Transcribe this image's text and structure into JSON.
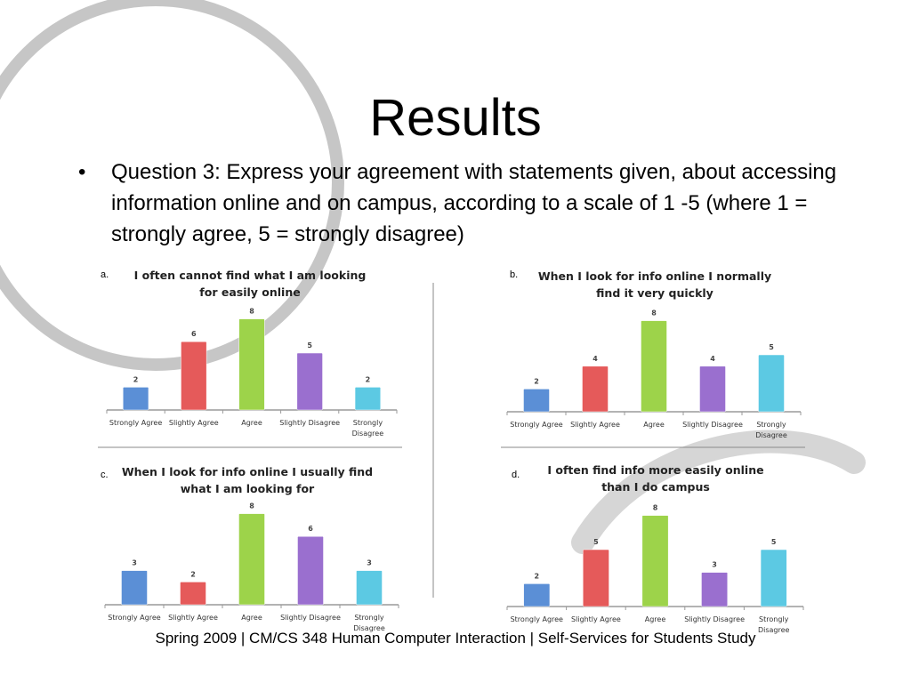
{
  "slide": {
    "title": "Results",
    "bullet_text": "Question 3: Express your agreement with statements given, about accessing information online and on campus, according to a scale of 1 -5 (where 1 = strongly agree, 5 = strongly disagree)",
    "footer": "Spring 2009 | CM/CS 348 Human Computer Interaction | Self-Services for Students Study"
  },
  "colors": {
    "Strongly Agree": "#5b8fd6",
    "Slightly Agree": "#e55a5a",
    "Agree": "#9dd34a",
    "Slightly Disagree": "#9a6fcf",
    "Strongly Disagree": "#5cc9e3"
  },
  "chart_data": [
    {
      "type": "bar",
      "letter": "a.",
      "title": [
        "I often cannot find what I am looking",
        "for easily online"
      ],
      "categories": [
        "Strongly Agree",
        "Slightly Agree",
        "Agree",
        "Slightly Disagree",
        "Strongly Disagree"
      ],
      "category_labels": [
        [
          "Strongly Agree"
        ],
        [
          "Slightly Agree"
        ],
        [
          "Agree"
        ],
        [
          "Slightly Disagree"
        ],
        [
          "Strongly",
          "Disagree"
        ]
      ],
      "values": [
        2,
        6,
        8,
        5,
        2
      ],
      "ylim": [
        0,
        8
      ]
    },
    {
      "type": "bar",
      "letter": "b.",
      "title": [
        "When I look for info online I normally",
        "find it very quickly"
      ],
      "categories": [
        "Strongly Agree",
        "Slightly Agree",
        "Agree",
        "Slightly Disagree",
        "Strongly Disagree"
      ],
      "category_labels": [
        [
          "Strongly Agree"
        ],
        [
          "Slightly Agree"
        ],
        [
          "Agree"
        ],
        [
          "Slightly Disagree"
        ],
        [
          "Strongly",
          "Disagree"
        ]
      ],
      "values": [
        2,
        4,
        8,
        4,
        5
      ],
      "ylim": [
        0,
        8
      ]
    },
    {
      "type": "bar",
      "letter": "c.",
      "title": [
        "When I look for info online I usually find",
        "what I am looking for"
      ],
      "categories": [
        "Strongly Agree",
        "Slightly Agree",
        "Agree",
        "Slightly Disagree",
        "Strongly Disagree"
      ],
      "category_labels": [
        [
          "Strongly Agree"
        ],
        [
          "Slightly Agree"
        ],
        [
          "Agree"
        ],
        [
          "Slightly Disagree"
        ],
        [
          "Strongly",
          "Disagree"
        ]
      ],
      "values": [
        3,
        2,
        8,
        6,
        3
      ],
      "ylim": [
        0,
        8
      ]
    },
    {
      "type": "bar",
      "letter": "d.",
      "title": [
        "I often find info more easily online",
        "than I do campus"
      ],
      "categories": [
        "Strongly Agree",
        "Slightly Agree",
        "Agree",
        "Slightly Disagree",
        "Strongly Disagree"
      ],
      "category_labels": [
        [
          "Strongly Agree"
        ],
        [
          "Slightly Agree"
        ],
        [
          "Agree"
        ],
        [
          "Slightly Disagree"
        ],
        [
          "Strongly",
          "Disagree"
        ]
      ],
      "values": [
        2,
        5,
        8,
        3,
        5
      ],
      "ylim": [
        0,
        8
      ]
    }
  ]
}
